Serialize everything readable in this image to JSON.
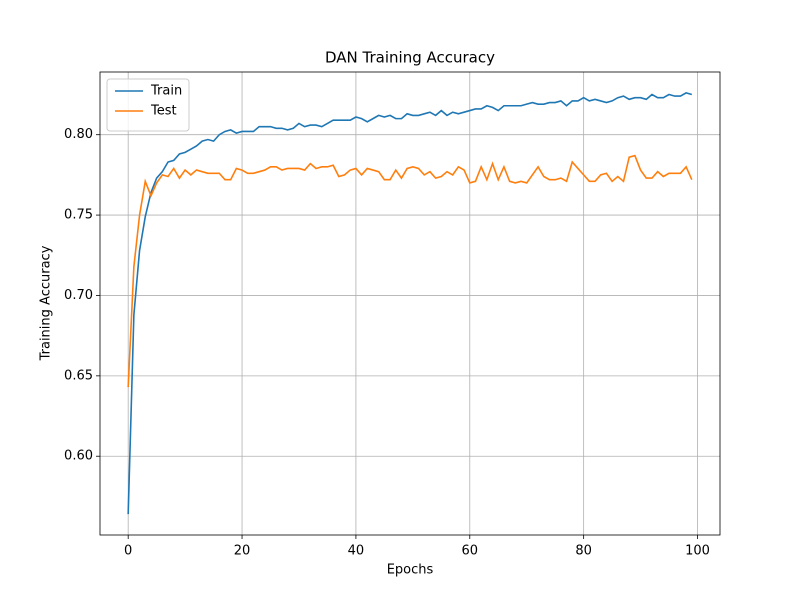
{
  "chart_data": {
    "type": "line",
    "title": "DAN Training Accuracy",
    "xlabel": "Epochs",
    "ylabel": "Training Accuracy",
    "x": [
      0,
      1,
      2,
      3,
      4,
      5,
      6,
      7,
      8,
      9,
      10,
      11,
      12,
      13,
      14,
      15,
      16,
      17,
      18,
      19,
      20,
      21,
      22,
      23,
      24,
      25,
      26,
      27,
      28,
      29,
      30,
      31,
      32,
      33,
      34,
      35,
      36,
      37,
      38,
      39,
      40,
      41,
      42,
      43,
      44,
      45,
      46,
      47,
      48,
      49,
      50,
      51,
      52,
      53,
      54,
      55,
      56,
      57,
      58,
      59,
      60,
      61,
      62,
      63,
      64,
      65,
      66,
      67,
      68,
      69,
      70,
      71,
      72,
      73,
      74,
      75,
      76,
      77,
      78,
      79,
      80,
      81,
      82,
      83,
      84,
      85,
      86,
      87,
      88,
      89,
      90,
      91,
      92,
      93,
      94,
      95,
      96,
      97,
      98,
      99
    ],
    "series": [
      {
        "name": "Train",
        "color": "#1f77b4",
        "values": [
          0.564,
          0.688,
          0.728,
          0.749,
          0.764,
          0.773,
          0.777,
          0.783,
          0.784,
          0.788,
          0.789,
          0.791,
          0.793,
          0.796,
          0.797,
          0.796,
          0.8,
          0.802,
          0.803,
          0.801,
          0.802,
          0.802,
          0.802,
          0.805,
          0.805,
          0.805,
          0.804,
          0.804,
          0.803,
          0.804,
          0.807,
          0.805,
          0.806,
          0.806,
          0.805,
          0.807,
          0.809,
          0.809,
          0.809,
          0.809,
          0.811,
          0.81,
          0.808,
          0.81,
          0.812,
          0.811,
          0.812,
          0.81,
          0.81,
          0.813,
          0.812,
          0.812,
          0.813,
          0.814,
          0.812,
          0.815,
          0.812,
          0.814,
          0.813,
          0.814,
          0.815,
          0.816,
          0.816,
          0.818,
          0.817,
          0.815,
          0.818,
          0.818,
          0.818,
          0.818,
          0.819,
          0.82,
          0.819,
          0.819,
          0.82,
          0.82,
          0.821,
          0.818,
          0.821,
          0.821,
          0.823,
          0.821,
          0.822,
          0.821,
          0.82,
          0.821,
          0.823,
          0.824,
          0.822,
          0.823,
          0.823,
          0.822,
          0.825,
          0.823,
          0.823,
          0.825,
          0.824,
          0.824,
          0.826,
          0.825
        ]
      },
      {
        "name": "Test",
        "color": "#ff7f0e",
        "values": [
          0.643,
          0.718,
          0.75,
          0.771,
          0.762,
          0.77,
          0.775,
          0.774,
          0.779,
          0.773,
          0.778,
          0.775,
          0.778,
          0.777,
          0.776,
          0.776,
          0.776,
          0.772,
          0.772,
          0.779,
          0.778,
          0.776,
          0.776,
          0.777,
          0.778,
          0.78,
          0.78,
          0.778,
          0.779,
          0.779,
          0.779,
          0.778,
          0.782,
          0.779,
          0.78,
          0.78,
          0.781,
          0.774,
          0.775,
          0.778,
          0.779,
          0.775,
          0.779,
          0.778,
          0.777,
          0.772,
          0.772,
          0.778,
          0.773,
          0.779,
          0.78,
          0.779,
          0.775,
          0.777,
          0.773,
          0.774,
          0.777,
          0.775,
          0.78,
          0.778,
          0.77,
          0.771,
          0.78,
          0.772,
          0.782,
          0.772,
          0.78,
          0.771,
          0.77,
          0.771,
          0.77,
          0.775,
          0.78,
          0.774,
          0.772,
          0.772,
          0.773,
          0.771,
          0.783,
          0.779,
          0.775,
          0.771,
          0.771,
          0.775,
          0.776,
          0.771,
          0.774,
          0.771,
          0.786,
          0.787,
          0.778,
          0.773,
          0.773,
          0.777,
          0.774,
          0.776,
          0.776,
          0.776,
          0.78,
          0.772
        ]
      }
    ],
    "xlim": [
      -4.95,
      103.95
    ],
    "ylim": [
      0.551,
      0.839
    ],
    "xticks": [
      0,
      20,
      40,
      60,
      80,
      100
    ],
    "yticks": [
      {
        "value": 0.6,
        "label": "0.60"
      },
      0.65,
      {
        "value": 0.7,
        "label": "0.70"
      },
      0.75,
      {
        "value": 0.8,
        "label": "0.80"
      }
    ],
    "grid": true,
    "legend": "upper left"
  }
}
